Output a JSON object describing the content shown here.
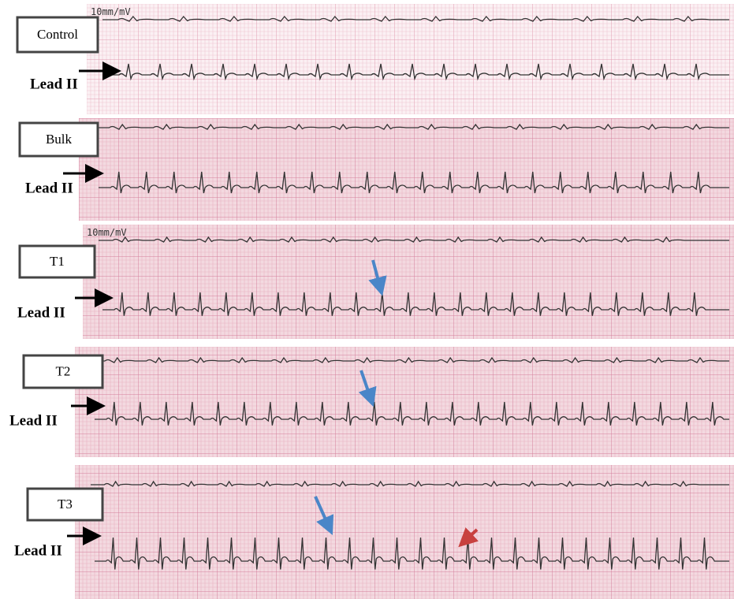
{
  "panels": [
    {
      "label": "Control",
      "lead": "Lead II",
      "scale": "10mm/mV"
    },
    {
      "label": "Bulk",
      "lead": "Lead II"
    },
    {
      "label": "T1",
      "lead": "Lead II",
      "scale": "10mm/mV"
    },
    {
      "label": "T2",
      "lead": "Lead II"
    },
    {
      "label": "T3",
      "lead": "Lead II"
    }
  ]
}
